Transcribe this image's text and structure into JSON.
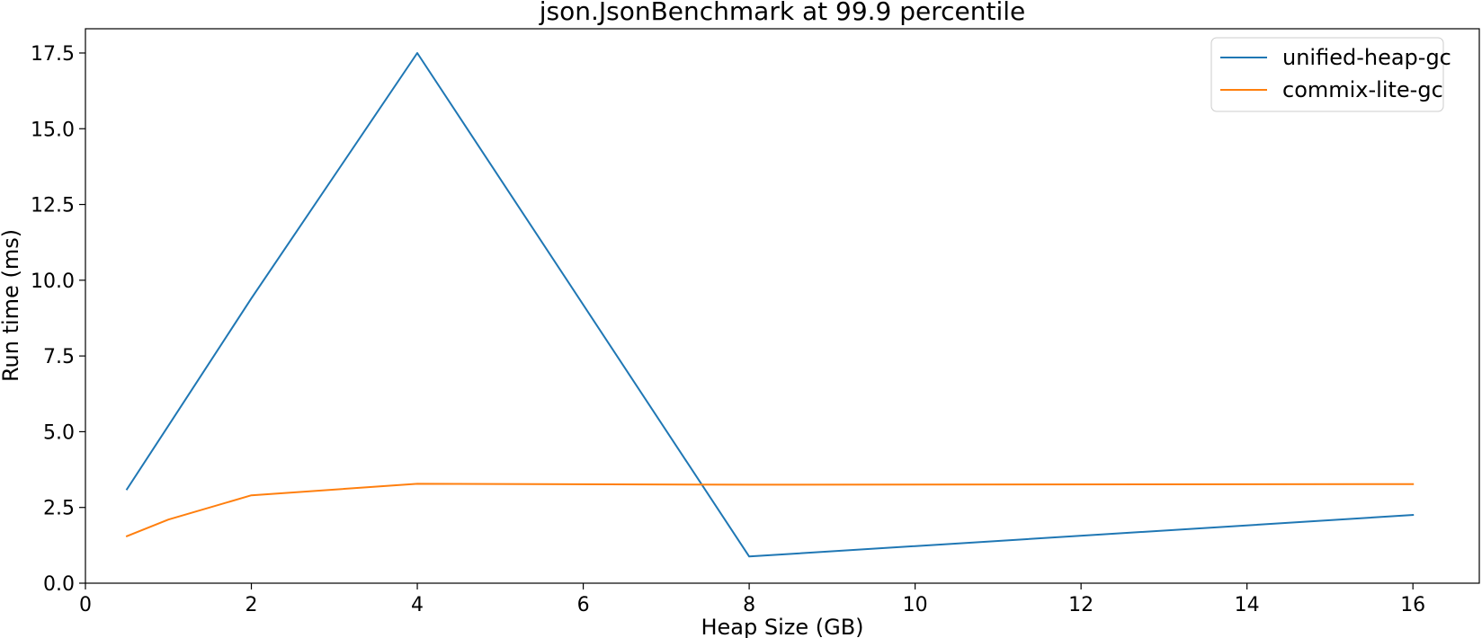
{
  "chart_data": {
    "type": "line",
    "title": "json.JsonBenchmark at 99.9 percentile",
    "xlabel": "Heap Size (GB)",
    "ylabel": "Run time (ms)",
    "xlim": [
      0,
      16.8
    ],
    "ylim": [
      0,
      18.3
    ],
    "xticks": [
      0,
      2,
      4,
      6,
      8,
      10,
      12,
      14,
      16
    ],
    "yticks": [
      0.0,
      2.5,
      5.0,
      7.5,
      10.0,
      12.5,
      15.0,
      17.5
    ],
    "ytick_labels": [
      "0.0",
      "2.5",
      "5.0",
      "7.5",
      "10.0",
      "12.5",
      "15.0",
      "17.5"
    ],
    "grid": false,
    "legend_position": "top-right",
    "series": [
      {
        "name": "unified-heap-gc",
        "color": "#1f77b4",
        "x": [
          0.5,
          1,
          2,
          4,
          8,
          16
        ],
        "y": [
          3.1,
          5.2,
          9.4,
          17.5,
          0.88,
          2.25
        ]
      },
      {
        "name": "commix-lite-gc",
        "color": "#ff7f0e",
        "x": [
          0.5,
          1,
          2,
          4,
          8,
          16
        ],
        "y": [
          1.55,
          2.1,
          2.9,
          3.28,
          3.25,
          3.27
        ]
      }
    ]
  }
}
